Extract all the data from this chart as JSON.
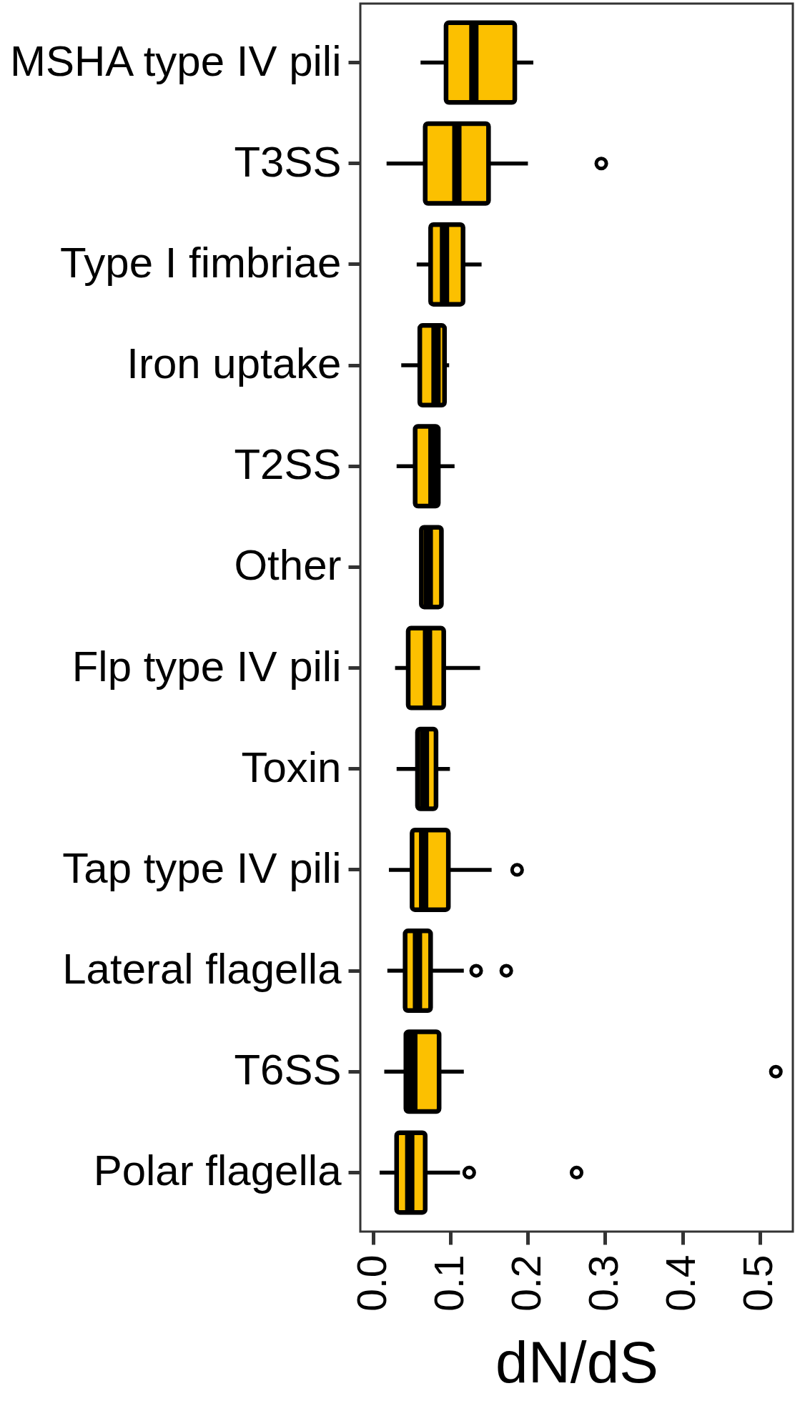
{
  "chart_data": {
    "type": "box",
    "orientation": "horizontal",
    "color": "#fcc000",
    "xlabel": "dN/dS",
    "categories": [
      "MSHA type IV pili",
      "T3SS",
      "Type I fimbriae",
      "Iron uptake",
      "T2SS",
      "Other",
      "Flp type IV pili",
      "Toxin",
      "Tap type IV pili",
      "Lateral flagella",
      "T6SS",
      "Polar flagella"
    ],
    "boxes": [
      {
        "low": 0.061,
        "q1": 0.094,
        "median": 0.13,
        "q3": 0.183,
        "high": 0.207
      },
      {
        "low": 0.017,
        "q1": 0.067,
        "median": 0.108,
        "q3": 0.149,
        "high": 0.2,
        "outliers": [
          0.295
        ]
      },
      {
        "low": 0.056,
        "q1": 0.074,
        "median": 0.092,
        "q3": 0.116,
        "high": 0.14
      },
      {
        "low": 0.036,
        "q1": 0.06,
        "median": 0.081,
        "q3": 0.092,
        "high": 0.098
      },
      {
        "low": 0.03,
        "q1": 0.054,
        "median": 0.077,
        "q3": 0.084,
        "high": 0.105
      },
      {
        "low": 0.062,
        "q1": 0.062,
        "median": 0.071,
        "q3": 0.088,
        "high": 0.088
      },
      {
        "low": 0.028,
        "q1": 0.045,
        "median": 0.07,
        "q3": 0.091,
        "high": 0.138
      },
      {
        "low": 0.03,
        "q1": 0.057,
        "median": 0.066,
        "q3": 0.081,
        "high": 0.099
      },
      {
        "low": 0.02,
        "q1": 0.05,
        "median": 0.065,
        "q3": 0.097,
        "high": 0.153,
        "outliers": [
          0.186
        ]
      },
      {
        "low": 0.018,
        "q1": 0.041,
        "median": 0.057,
        "q3": 0.074,
        "high": 0.117,
        "outliers": [
          0.133,
          0.172
        ]
      },
      {
        "low": 0.014,
        "q1": 0.042,
        "median": 0.051,
        "q3": 0.085,
        "high": 0.117,
        "outliers": [
          0.521
        ]
      },
      {
        "low": 0.008,
        "q1": 0.03,
        "median": 0.047,
        "q3": 0.067,
        "high": 0.112,
        "outliers": [
          0.124,
          0.263
        ]
      }
    ],
    "xlim": [
      -0.017,
      0.543
    ],
    "xticks": [
      {
        "value": 0,
        "label": "0.0"
      },
      0.1,
      0.2,
      0.3,
      0.4,
      0.5
    ]
  }
}
